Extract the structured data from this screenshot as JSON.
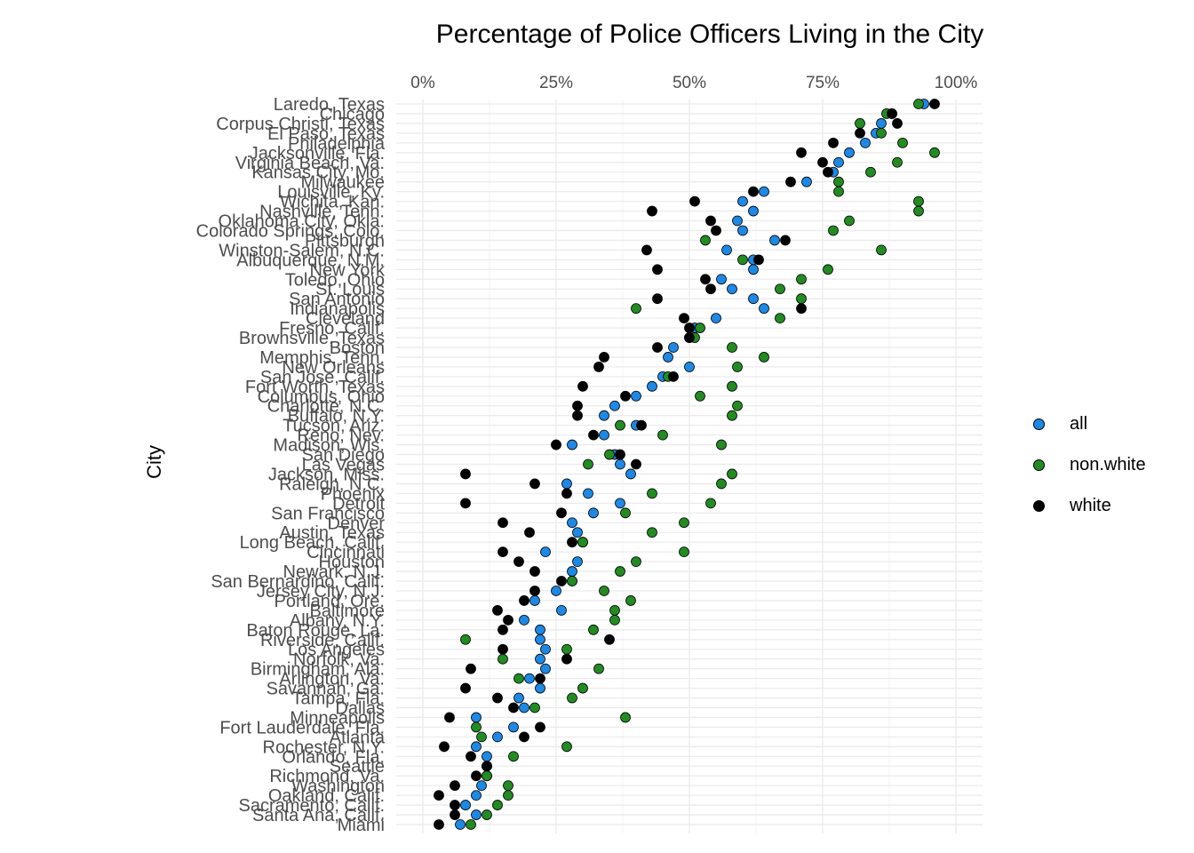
{
  "chart_data": {
    "type": "scatter",
    "title": "Percentage of Police Officers Living in the City",
    "xlabel": "",
    "ylabel": "City",
    "xlim": [
      0,
      100
    ],
    "x_ticks": [
      "0%",
      "25%",
      "50%",
      "75%",
      "100%"
    ],
    "x_tick_values": [
      0,
      25,
      50,
      75,
      100
    ],
    "x_position": "top",
    "grid": true,
    "legend_position": "right",
    "series": [
      {
        "name": "all",
        "color": "#1E88E5"
      },
      {
        "name": "non.white",
        "color": "#228B22"
      },
      {
        "name": "white",
        "color": "#000000"
      }
    ],
    "cities": [
      {
        "city": "Laredo, Texas",
        "all": 94,
        "nonwhite": 93,
        "white": 96
      },
      {
        "city": "Chicago",
        "all": 88,
        "nonwhite": 87,
        "white": 88
      },
      {
        "city": "Corpus Christi, Texas",
        "all": 86,
        "nonwhite": 82,
        "white": 89
      },
      {
        "city": "El Paso, Texas",
        "all": 85,
        "nonwhite": 86,
        "white": 82
      },
      {
        "city": "Philadelphia",
        "all": 83,
        "nonwhite": 90,
        "white": 77
      },
      {
        "city": "Jacksonville, Fla.",
        "all": 80,
        "nonwhite": 96,
        "white": 71
      },
      {
        "city": "Virginia Beach, Va.",
        "all": 78,
        "nonwhite": 89,
        "white": 75
      },
      {
        "city": "Kansas City, Mo.",
        "all": 77,
        "nonwhite": 84,
        "white": 76
      },
      {
        "city": "Milwaukee",
        "all": 72,
        "nonwhite": 78,
        "white": 69
      },
      {
        "city": "Louisville, Ky.",
        "all": 64,
        "nonwhite": 78,
        "white": 62
      },
      {
        "city": "Wichita, Kan.",
        "all": 60,
        "nonwhite": 93,
        "white": 51
      },
      {
        "city": "Nashville, Tenn.",
        "all": 62,
        "nonwhite": 93,
        "white": 43
      },
      {
        "city": "Oklahoma City, Okla.",
        "all": 59,
        "nonwhite": 80,
        "white": 54
      },
      {
        "city": "Colorado Springs, Colo.",
        "all": 60,
        "nonwhite": 77,
        "white": 55
      },
      {
        "city": "Pittsburgh",
        "all": 66,
        "nonwhite": 53,
        "white": 68
      },
      {
        "city": "Winston-Salem, N.C.",
        "all": 57,
        "nonwhite": 86,
        "white": 42
      },
      {
        "city": "Albuquerque, N.M.",
        "all": 62,
        "nonwhite": 60,
        "white": 63
      },
      {
        "city": "New York",
        "all": 62,
        "nonwhite": 76,
        "white": 44
      },
      {
        "city": "Toledo, Ohio",
        "all": 56,
        "nonwhite": 71,
        "white": 53
      },
      {
        "city": "St. Louis",
        "all": 58,
        "nonwhite": 67,
        "white": 54
      },
      {
        "city": "San Antonio",
        "all": 62,
        "nonwhite": 71,
        "white": 44
      },
      {
        "city": "Indianapolis",
        "all": 64,
        "nonwhite": 40,
        "white": 71
      },
      {
        "city": "Cleveland",
        "all": 55,
        "nonwhite": 67,
        "white": 49
      },
      {
        "city": "Fresno, Calif.",
        "all": 51,
        "nonwhite": 52,
        "white": 50
      },
      {
        "city": "Brownsville, Texas",
        "all": 50,
        "nonwhite": 51,
        "white": 50
      },
      {
        "city": "Boston",
        "all": 47,
        "nonwhite": 58,
        "white": 44
      },
      {
        "city": "Memphis, Tenn.",
        "all": 46,
        "nonwhite": 64,
        "white": 34
      },
      {
        "city": "New Orleans",
        "all": 50,
        "nonwhite": 59,
        "white": 33
      },
      {
        "city": "San Jose, Calif.",
        "all": 45,
        "nonwhite": 46,
        "white": 47
      },
      {
        "city": "Fort Worth, Texas",
        "all": 43,
        "nonwhite": 58,
        "white": 30
      },
      {
        "city": "Columbus, Ohio",
        "all": 40,
        "nonwhite": 52,
        "white": 38
      },
      {
        "city": "Charlotte, N.C.",
        "all": 36,
        "nonwhite": 59,
        "white": 29
      },
      {
        "city": "Buffalo, N.Y.",
        "all": 34,
        "nonwhite": 58,
        "white": 29
      },
      {
        "city": "Tucson, Ariz.",
        "all": 40,
        "nonwhite": 37,
        "white": 41
      },
      {
        "city": "Reno, Nev.",
        "all": 34,
        "nonwhite": 45,
        "white": 32
      },
      {
        "city": "Madison, Wis.",
        "all": 28,
        "nonwhite": 56,
        "white": 25
      },
      {
        "city": "San Diego",
        "all": 36,
        "nonwhite": 35,
        "white": 37
      },
      {
        "city": "Las Vegas",
        "all": 37,
        "nonwhite": 31,
        "white": 40
      },
      {
        "city": "Jackson, Miss.",
        "all": 39,
        "nonwhite": 58,
        "white": 8
      },
      {
        "city": "Raleigh, N.C.",
        "all": 27,
        "nonwhite": 56,
        "white": 21
      },
      {
        "city": "Phoenix",
        "all": 31,
        "nonwhite": 43,
        "white": 27
      },
      {
        "city": "Detroit",
        "all": 37,
        "nonwhite": 54,
        "white": 8
      },
      {
        "city": "San Francisco",
        "all": 32,
        "nonwhite": 38,
        "white": 26
      },
      {
        "city": "Denver",
        "all": 28,
        "nonwhite": 49,
        "white": 15
      },
      {
        "city": "Austin, Texas",
        "all": 29,
        "nonwhite": 43,
        "white": 20
      },
      {
        "city": "Long Beach, Calif.",
        "all": 30,
        "nonwhite": 30,
        "white": 28
      },
      {
        "city": "Cincinnati",
        "all": 23,
        "nonwhite": 49,
        "white": 15
      },
      {
        "city": "Houston",
        "all": 29,
        "nonwhite": 40,
        "white": 18
      },
      {
        "city": "Newark, N.J.",
        "all": 28,
        "nonwhite": 37,
        "white": 21
      },
      {
        "city": "San Bernardino, Calif.",
        "all": 28,
        "nonwhite": 28,
        "white": 26
      },
      {
        "city": "Jersey City, N.J.",
        "all": 25,
        "nonwhite": 34,
        "white": 21
      },
      {
        "city": "Portland, Ore.",
        "all": 21,
        "nonwhite": 39,
        "white": 19
      },
      {
        "city": "Baltimore",
        "all": 26,
        "nonwhite": 36,
        "white": 14
      },
      {
        "city": "Albany, N.Y.",
        "all": 19,
        "nonwhite": 36,
        "white": 16
      },
      {
        "city": "Baton Rouge, La.",
        "all": 22,
        "nonwhite": 32,
        "white": 15
      },
      {
        "city": "Riverside, Calif.",
        "all": 22,
        "nonwhite": 8,
        "white": 35
      },
      {
        "city": "Los Angeles",
        "all": 23,
        "nonwhite": 27,
        "white": 15
      },
      {
        "city": "Norfolk, Va.",
        "all": 22,
        "nonwhite": 15,
        "white": 27
      },
      {
        "city": "Birmingham, Ala.",
        "all": 23,
        "nonwhite": 33,
        "white": 9
      },
      {
        "city": "Arlington, Va.",
        "all": 20,
        "nonwhite": 18,
        "white": 22
      },
      {
        "city": "Savannah, Ga.",
        "all": 22,
        "nonwhite": 30,
        "white": 8
      },
      {
        "city": "Tampa, Fla.",
        "all": 18,
        "nonwhite": 28,
        "white": 14
      },
      {
        "city": "Dallas",
        "all": 19,
        "nonwhite": 21,
        "white": 17
      },
      {
        "city": "Minneapolis",
        "all": 10,
        "nonwhite": 38,
        "white": 5
      },
      {
        "city": "Fort Lauderdale, Fla.",
        "all": 17,
        "nonwhite": 10,
        "white": 22
      },
      {
        "city": "Atlanta",
        "all": 14,
        "nonwhite": 11,
        "white": 19
      },
      {
        "city": "Rochester, N.Y.",
        "all": 10,
        "nonwhite": 27,
        "white": 4
      },
      {
        "city": "Orlando, Fla.",
        "all": 12,
        "nonwhite": 17,
        "white": 9
      },
      {
        "city": "Seattle",
        "all": 12,
        "nonwhite": 12,
        "white": 12
      },
      {
        "city": "Richmond, Va.",
        "all": 12,
        "nonwhite": 12,
        "white": 10
      },
      {
        "city": "Washington",
        "all": 11,
        "nonwhite": 16,
        "white": 6
      },
      {
        "city": "Oakland, Calif.",
        "all": 10,
        "nonwhite": 16,
        "white": 3
      },
      {
        "city": "Sacramento, Calif.",
        "all": 8,
        "nonwhite": 14,
        "white": 6
      },
      {
        "city": "Santa Ana, Calif.",
        "all": 10,
        "nonwhite": 12,
        "white": 6
      },
      {
        "city": "Miami",
        "all": 7,
        "nonwhite": 9,
        "white": 3
      }
    ]
  }
}
